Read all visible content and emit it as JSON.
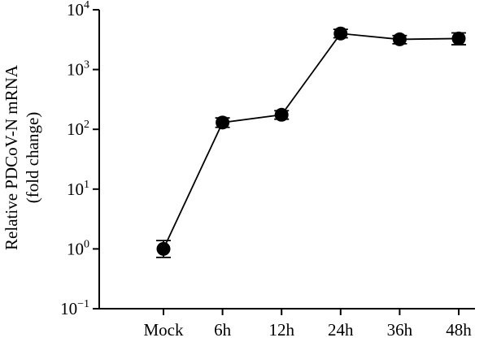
{
  "chart_data": {
    "type": "line",
    "yscale": "log",
    "ylim": [
      0.1,
      10000
    ],
    "yticks": [
      {
        "value": 0.1,
        "base": "10",
        "exp": "−1"
      },
      {
        "value": 1,
        "base": "10",
        "exp": "0"
      },
      {
        "value": 10,
        "base": "10",
        "exp": "1"
      },
      {
        "value": 100,
        "base": "10",
        "exp": "2"
      },
      {
        "value": 1000,
        "base": "10",
        "exp": "3"
      },
      {
        "value": 10000,
        "base": "10",
        "exp": "4"
      }
    ],
    "ylabel_line1": "Relative PDCoV-N mRNA",
    "ylabel_line2": "(fold change)",
    "categories": [
      "Mock",
      "6h",
      "12h",
      "24h",
      "36h",
      "48h"
    ],
    "series": [
      {
        "values": [
          1.0,
          130,
          175,
          4000,
          3200,
          3300
        ],
        "error_low": [
          0.72,
          108,
          148,
          3400,
          2700,
          2600
        ],
        "error_high": [
          1.38,
          155,
          205,
          4700,
          3700,
          4100
        ]
      }
    ],
    "grid": false,
    "legend": "none",
    "color": "#000000"
  }
}
